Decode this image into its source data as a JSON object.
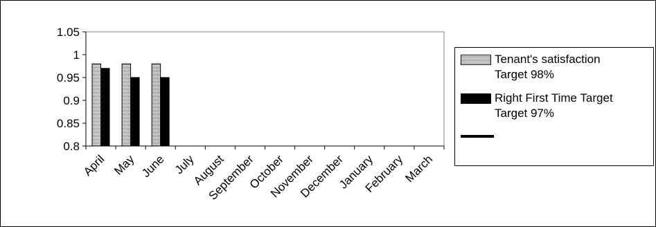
{
  "chart_data": {
    "type": "bar",
    "categories": [
      "April",
      "May",
      "June",
      "July",
      "August",
      "September",
      "October",
      "November",
      "December",
      "January",
      "February",
      "March"
    ],
    "series": [
      {
        "name": "Tenant's satisfaction\nTarget 98%",
        "values": [
          0.98,
          0.98,
          0.98,
          null,
          null,
          null,
          null,
          null,
          null,
          null,
          null,
          null
        ],
        "fill": "striped"
      },
      {
        "name": "Right First Time Target\nTarget 97%",
        "values": [
          0.97,
          0.95,
          0.95,
          null,
          null,
          null,
          null,
          null,
          null,
          null,
          null,
          null
        ],
        "fill": "solid"
      },
      {
        "name": "",
        "type": "line",
        "values": [
          null,
          null,
          null,
          null,
          null,
          null,
          null,
          null,
          null,
          null,
          null,
          null
        ]
      }
    ],
    "yticks": [
      "0.8",
      "0.85",
      "0.9",
      "0.95",
      "1",
      "1.05"
    ],
    "ylim": [
      0.8,
      1.05
    ],
    "legend_position": "right",
    "grid": false,
    "colors": {
      "bar_solid": "#000000",
      "bar_stripe": "#7f7f7f",
      "axis": "#000000"
    }
  }
}
